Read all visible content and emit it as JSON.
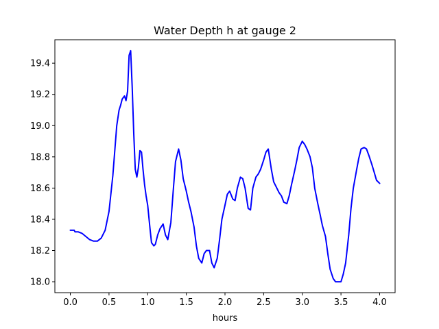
{
  "chart_data": {
    "type": "line",
    "title": "Water Depth h at gauge 2",
    "xlabel": "hours",
    "ylabel": "",
    "xlim": [
      -0.2,
      4.2
    ],
    "ylim": [
      17.93,
      19.55
    ],
    "xticks": [
      0.0,
      0.5,
      1.0,
      1.5,
      2.0,
      2.5,
      3.0,
      3.5,
      4.0
    ],
    "xtick_labels": [
      "0.0",
      "0.5",
      "1.0",
      "1.5",
      "2.0",
      "2.5",
      "3.0",
      "3.5",
      "4.0"
    ],
    "yticks": [
      18.0,
      18.2,
      18.4,
      18.6,
      18.8,
      19.0,
      19.2,
      19.4
    ],
    "ytick_labels": [
      "18.0",
      "18.2",
      "18.4",
      "18.6",
      "18.8",
      "19.0",
      "19.2",
      "19.4"
    ],
    "grid": false,
    "series": [
      {
        "color": "#0000ff",
        "x": [
          0.0,
          0.05,
          0.06,
          0.1,
          0.15,
          0.2,
          0.25,
          0.3,
          0.35,
          0.4,
          0.45,
          0.5,
          0.55,
          0.6,
          0.63,
          0.65,
          0.67,
          0.7,
          0.72,
          0.74,
          0.76,
          0.78,
          0.8,
          0.82,
          0.84,
          0.86,
          0.88,
          0.9,
          0.92,
          0.94,
          0.96,
          0.98,
          1.0,
          1.03,
          1.05,
          1.08,
          1.1,
          1.13,
          1.16,
          1.2,
          1.23,
          1.26,
          1.3,
          1.33,
          1.36,
          1.4,
          1.43,
          1.46,
          1.5,
          1.53,
          1.56,
          1.6,
          1.63,
          1.66,
          1.7,
          1.73,
          1.76,
          1.8,
          1.83,
          1.86,
          1.9,
          1.93,
          1.96,
          2.0,
          2.03,
          2.06,
          2.1,
          2.13,
          2.16,
          2.2,
          2.23,
          2.26,
          2.3,
          2.33,
          2.36,
          2.4,
          2.43,
          2.46,
          2.5,
          2.53,
          2.56,
          2.6,
          2.63,
          2.66,
          2.7,
          2.73,
          2.76,
          2.8,
          2.83,
          2.86,
          2.9,
          2.93,
          2.96,
          3.0,
          3.03,
          3.06,
          3.1,
          3.13,
          3.16,
          3.2,
          3.23,
          3.26,
          3.3,
          3.33,
          3.36,
          3.4,
          3.43,
          3.46,
          3.5,
          3.53,
          3.56,
          3.6,
          3.63,
          3.66,
          3.7,
          3.73,
          3.76,
          3.8,
          3.83,
          3.86,
          3.9,
          3.93,
          3.96,
          4.0
        ],
        "y": [
          18.33,
          18.33,
          18.32,
          18.32,
          18.31,
          18.29,
          18.27,
          18.26,
          18.26,
          18.28,
          18.33,
          18.45,
          18.68,
          19.0,
          19.1,
          19.13,
          19.17,
          19.19,
          19.16,
          19.22,
          19.45,
          19.48,
          19.25,
          18.95,
          18.72,
          18.67,
          18.73,
          18.84,
          18.83,
          18.72,
          18.62,
          18.55,
          18.49,
          18.34,
          18.25,
          18.23,
          18.24,
          18.3,
          18.34,
          18.37,
          18.3,
          18.27,
          18.38,
          18.58,
          18.77,
          18.85,
          18.78,
          18.66,
          18.58,
          18.51,
          18.45,
          18.35,
          18.23,
          18.15,
          18.12,
          18.18,
          18.2,
          18.2,
          18.12,
          18.09,
          18.15,
          18.27,
          18.4,
          18.49,
          18.56,
          18.58,
          18.53,
          18.52,
          18.6,
          18.67,
          18.66,
          18.6,
          18.47,
          18.46,
          18.6,
          18.67,
          18.69,
          18.72,
          18.78,
          18.83,
          18.85,
          18.72,
          18.64,
          18.61,
          18.57,
          18.55,
          18.51,
          18.5,
          18.55,
          18.62,
          18.71,
          18.78,
          18.86,
          18.9,
          18.88,
          18.85,
          18.8,
          18.73,
          18.6,
          18.5,
          18.43,
          18.36,
          18.29,
          18.18,
          18.08,
          18.02,
          18.0,
          18.0,
          18.0,
          18.05,
          18.12,
          18.3,
          18.47,
          18.6,
          18.71,
          18.79,
          18.85,
          18.86,
          18.85,
          18.81,
          18.75,
          18.7,
          18.65,
          18.63
        ]
      }
    ]
  }
}
